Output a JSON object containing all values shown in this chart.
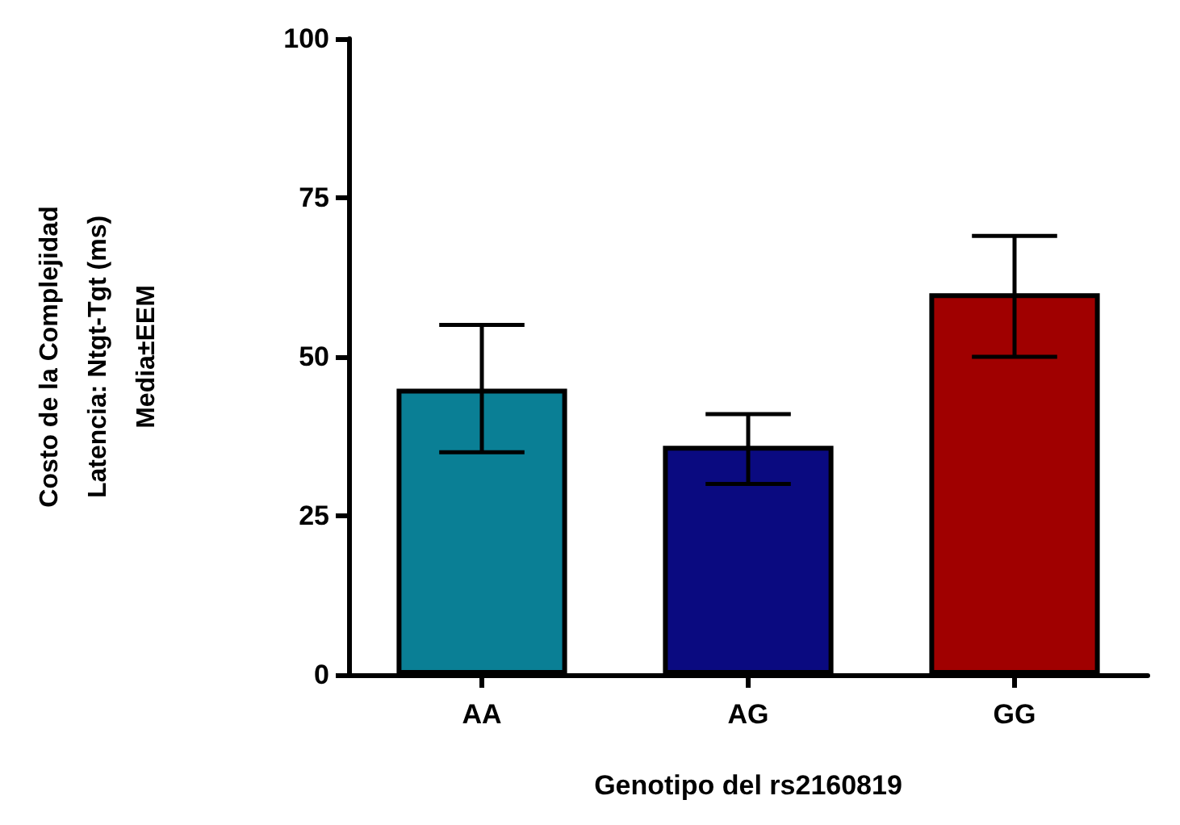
{
  "chart_data": {
    "type": "bar",
    "xlabel": "Genotipo del rs2160819",
    "ylabel": "Costo de la Complejidad\nLatencia: Ntgt-Tgt (ms)\nMedia±EEM",
    "categories": [
      "AA",
      "AG",
      "GG"
    ],
    "values": [
      45,
      36,
      60
    ],
    "colors": [
      "#0a7f95",
      "#0a0a80",
      "#a00000"
    ],
    "errors": [
      [
        35,
        55
      ],
      [
        30,
        41
      ],
      [
        50,
        69
      ]
    ],
    "ylim": [
      0,
      100
    ],
    "yticks": [
      0,
      25,
      50,
      75,
      100
    ],
    "grid": false
  }
}
